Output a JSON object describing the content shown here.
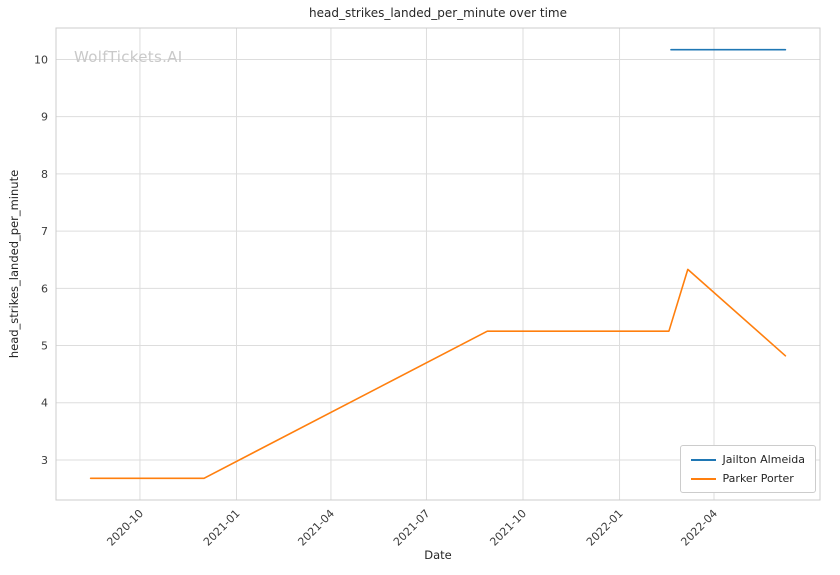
{
  "chart_data": {
    "type": "line",
    "title": "head_strikes_landed_per_minute over time",
    "xlabel": "Date",
    "ylabel": "head_strikes_landed_per_minute",
    "watermark": "WolfTickets.AI",
    "grid": true,
    "legend_position": "lower right",
    "x_ticks": [
      "2020-10",
      "2021-01",
      "2021-04",
      "2021-07",
      "2021-10",
      "2022-01",
      "2022-04"
    ],
    "y_ticks": [
      3,
      4,
      5,
      6,
      7,
      8,
      9,
      10
    ],
    "xlim": [
      "2020-07-13",
      "2022-07-11"
    ],
    "ylim": [
      2.3,
      10.55
    ],
    "series": [
      {
        "name": "Jailton Almeida",
        "color": "#1f77b4",
        "points": [
          [
            "2022-02-19",
            10.17
          ],
          [
            "2022-06-08",
            10.17
          ]
        ]
      },
      {
        "name": "Parker Porter",
        "color": "#ff7f0e",
        "points": [
          [
            "2020-08-15",
            2.68
          ],
          [
            "2020-12-01",
            2.68
          ],
          [
            "2021-08-28",
            5.25
          ],
          [
            "2022-02-17",
            5.25
          ],
          [
            "2022-03-07",
            6.33
          ],
          [
            "2022-06-08",
            4.82
          ]
        ]
      }
    ]
  }
}
